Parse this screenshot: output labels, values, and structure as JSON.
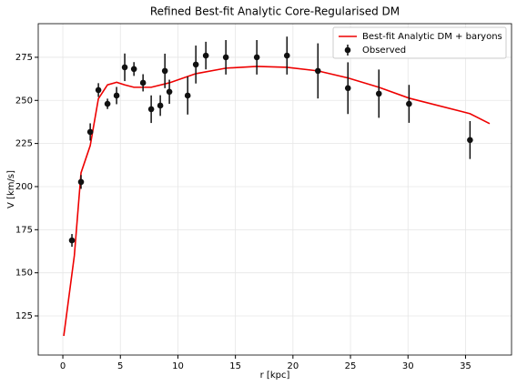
{
  "chart_data": {
    "type": "line_errorbar",
    "title": "Refined Best-fit Analytic Core-Regularised DM",
    "x_label": "r [kpc]",
    "y_label": "V [km/s]",
    "xlim": [
      -2.14,
      39.0
    ],
    "ylim": [
      102.3,
      294.5
    ],
    "xticks": [
      0,
      5,
      10,
      15,
      20,
      25,
      30,
      35
    ],
    "yticks": [
      125,
      150,
      175,
      200,
      225,
      250,
      275
    ],
    "grid": true,
    "legend": "upper right",
    "series": [
      {
        "name": "Best-fit Analytic DM + baryons",
        "kind": "line",
        "color": "#ee0000",
        "x": [
          0.08,
          1.0,
          1.58,
          2.38,
          3.09,
          3.88,
          4.67,
          5.38,
          6.18,
          7.68,
          9.26,
          11.56,
          14.17,
          16.86,
          19.48,
          22.17,
          24.78,
          27.47,
          30.09,
          35.39,
          37.1
        ],
        "values": [
          113.4,
          160,
          208,
          223.8,
          251,
          259,
          260.5,
          259,
          257.6,
          257.6,
          260.2,
          265.5,
          268.7,
          269.7,
          269.2,
          267.1,
          263,
          257.6,
          251.3,
          242.3,
          236.5
        ]
      },
      {
        "name": "Observed",
        "kind": "errorbar",
        "color": "#111111",
        "x": [
          0.79,
          1.58,
          2.38,
          3.09,
          3.88,
          4.67,
          5.38,
          6.18,
          6.97,
          7.68,
          8.47,
          8.87,
          9.26,
          10.85,
          11.56,
          12.43,
          14.17,
          16.86,
          19.48,
          22.17,
          24.78,
          27.47,
          30.09,
          35.39
        ],
        "values": [
          168.8,
          202.7,
          231.7,
          256,
          248,
          252.8,
          269.2,
          268.2,
          260.2,
          244.9,
          247,
          267.1,
          255,
          252.8,
          270.8,
          276,
          275,
          275,
          276,
          267.1,
          257.1,
          253.9,
          248,
          227
        ],
        "errors": [
          3.7,
          4,
          5,
          4,
          3,
          5,
          8,
          4,
          5,
          8,
          6,
          10,
          7,
          11,
          11,
          8,
          10,
          10,
          11,
          16,
          15,
          14,
          11,
          11
        ]
      }
    ]
  }
}
